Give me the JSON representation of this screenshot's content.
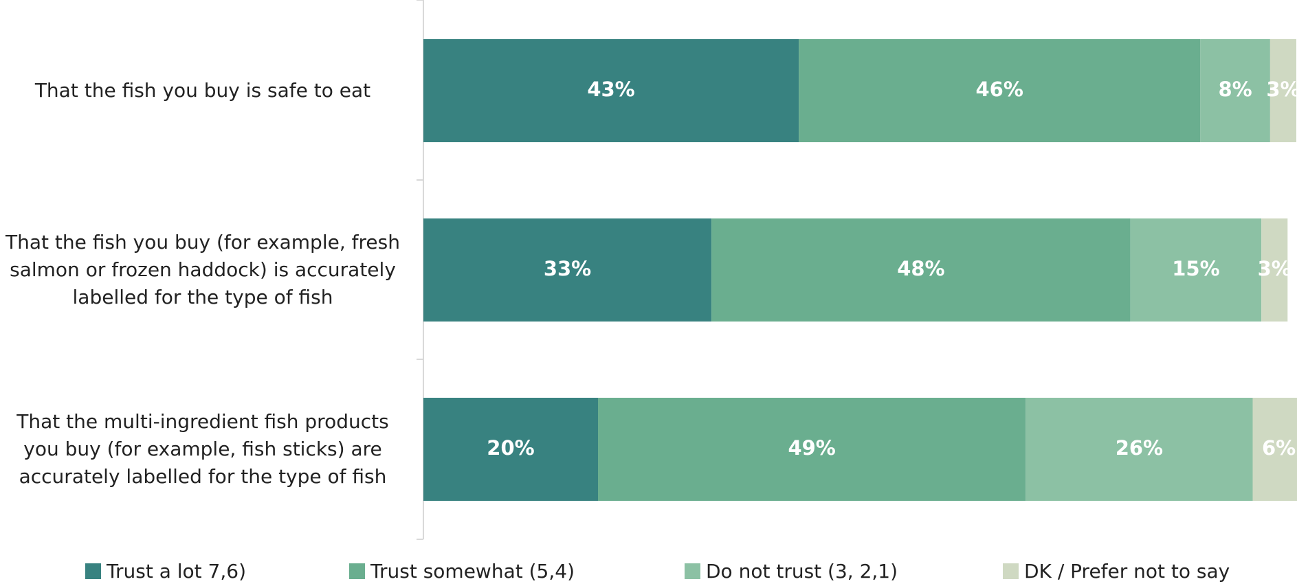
{
  "chart_data": {
    "type": "stacked-bar",
    "categories": [
      "That the fish you buy is safe to eat",
      "That the fish you buy (for example, fresh salmon or frozen haddock) is accurately labelled for the type of fish",
      "That the multi-ingredient fish products you buy (for example, fish sticks) are accurately labelled for the type of fish"
    ],
    "series": [
      {
        "name": "Trust a lot 7,6)",
        "color": "#388280",
        "values": [
          43,
          33,
          20
        ],
        "value_labels": [
          "43%",
          "33%",
          "20%"
        ]
      },
      {
        "name": "Trust somewhat (5,4)",
        "color": "#6aae8f",
        "values": [
          46,
          48,
          49
        ],
        "value_labels": [
          "46%",
          "48%",
          "49%"
        ]
      },
      {
        "name": "Do not trust (3, 2,1)",
        "color": "#8cc1a4",
        "values": [
          8,
          15,
          26
        ],
        "value_labels": [
          "8%",
          "15%",
          "26%"
        ]
      },
      {
        "name": "DK / Prefer not to say",
        "color": "#cfd9c2",
        "values": [
          3,
          3,
          6
        ],
        "value_labels": [
          "3%",
          "3%",
          "6%"
        ]
      }
    ]
  }
}
